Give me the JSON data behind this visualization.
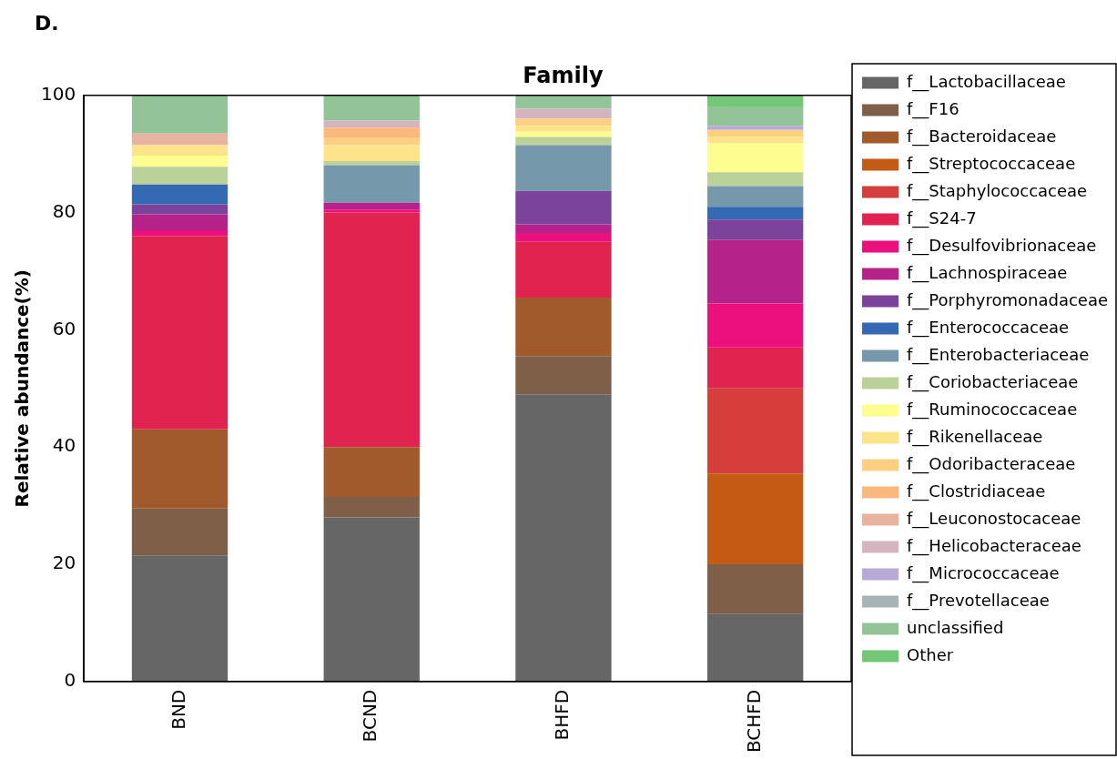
{
  "chart_data": {
    "type": "bar",
    "title": "Family",
    "ylabel": "Relative abundance(%)",
    "annotations": [
      "D."
    ],
    "categories": [
      "BND",
      "BCND",
      "BHFD",
      "BCHFD"
    ],
    "stacked": true,
    "ylim": [
      0,
      100
    ],
    "yticks": [
      0,
      20,
      40,
      60,
      80,
      100
    ],
    "grid": false,
    "legend": "right",
    "series": [
      {
        "name": "f__Lactobacillaceae",
        "color": "#666666",
        "values": [
          21.5,
          28,
          49,
          11.5
        ]
      },
      {
        "name": "f__F16",
        "color": "#7f5f47",
        "values": [
          8,
          3.5,
          6.5,
          8.5
        ]
      },
      {
        "name": "f__Bacteroidaceae",
        "color": "#a05a2c",
        "values": [
          13.5,
          8.5,
          10,
          0
        ]
      },
      {
        "name": "f__Streptococcaceae",
        "color": "#c45b14",
        "values": [
          0,
          0,
          0,
          15.5
        ]
      },
      {
        "name": "f__Staphylococcaceae",
        "color": "#d53e3b",
        "values": [
          0,
          0,
          0,
          14.5
        ]
      },
      {
        "name": "f__S24-7",
        "color": "#e0234f",
        "values": [
          33,
          40,
          9.5,
          7
        ]
      },
      {
        "name": "f__Desulfovibrionaceae",
        "color": "#ec0f7e",
        "values": [
          1,
          0.5,
          1.5,
          7.5
        ]
      },
      {
        "name": "f__Lachnospiraceae",
        "color": "#b5228a",
        "values": [
          2.7,
          1.2,
          1.5,
          10.8
        ]
      },
      {
        "name": "f__Porphyromonadaceae",
        "color": "#7b439c",
        "values": [
          1.7,
          0,
          5.7,
          3.5
        ]
      },
      {
        "name": "f__Enterococcaceae",
        "color": "#3469b3",
        "values": [
          3.4,
          0,
          0,
          2.2
        ]
      },
      {
        "name": "f__Enterobacteriaceae",
        "color": "#7598aa",
        "values": [
          0,
          6.4,
          7.8,
          3.5
        ]
      },
      {
        "name": "f__Coriobacteriaceae",
        "color": "#bbd19a",
        "values": [
          3,
          0.7,
          1.4,
          2.4
        ]
      },
      {
        "name": "f__Ruminococcaceae",
        "color": "#fdfd90",
        "values": [
          1.9,
          0,
          0.9,
          4.9
        ]
      },
      {
        "name": "f__Rikenellaceae",
        "color": "#fde48a",
        "values": [
          1.8,
          2.7,
          1,
          1.2
        ]
      },
      {
        "name": "f__Odoribacteraceae",
        "color": "#fdcf80",
        "values": [
          0,
          1.2,
          1.2,
          1.1
        ]
      },
      {
        "name": "f__Clostridiaceae",
        "color": "#fcb77d",
        "values": [
          0,
          1.8,
          0,
          0
        ]
      },
      {
        "name": "f__Leuconostocaceae",
        "color": "#e8b49f",
        "values": [
          2,
          0,
          0,
          0
        ]
      },
      {
        "name": "f__Helicobacteraceae",
        "color": "#d4b4bf",
        "values": [
          0,
          1.2,
          1.7,
          0
        ]
      },
      {
        "name": "f__Micrococcaceae",
        "color": "#b8aad8",
        "values": [
          0,
          0,
          0,
          0.7
        ]
      },
      {
        "name": "f__Prevotellaceae",
        "color": "#a6b4b4",
        "values": [
          0,
          0,
          0,
          0
        ]
      },
      {
        "name": "unclassified",
        "color": "#93c497",
        "values": [
          6.5,
          4.3,
          2.3,
          3.3
        ]
      },
      {
        "name": "Other",
        "color": "#72c876",
        "values": [
          0,
          0,
          0,
          1.9
        ]
      }
    ]
  }
}
